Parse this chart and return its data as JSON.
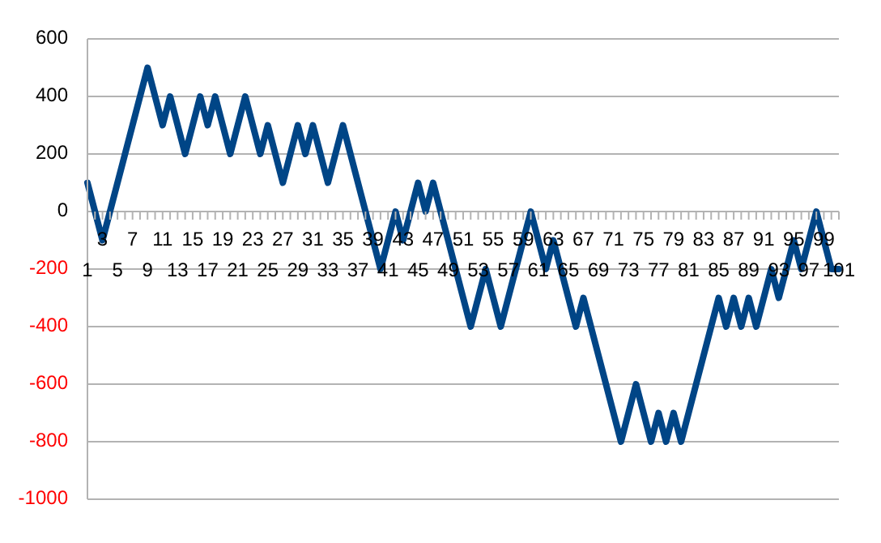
{
  "chart_data": {
    "type": "line",
    "categories": [
      "1",
      null,
      "3",
      null,
      "5",
      null,
      "7",
      null,
      "9",
      null,
      "11",
      null,
      "13",
      null,
      "15",
      null,
      "17",
      null,
      "19",
      null,
      "21",
      null,
      "23",
      null,
      "25",
      null,
      "27",
      null,
      "29",
      null,
      "31",
      null,
      "33",
      null,
      "35",
      null,
      "37",
      null,
      "39",
      null,
      "41",
      null,
      "43",
      null,
      "45",
      null,
      "47",
      null,
      "49",
      null,
      "51",
      null,
      "53",
      null,
      "55",
      null,
      "57",
      null,
      "59",
      null,
      "61",
      null,
      "63",
      null,
      "65",
      null,
      "67",
      null,
      "69",
      null,
      "71",
      null,
      "73",
      null,
      "75",
      null,
      "77",
      null,
      "79",
      null,
      "81",
      null,
      "83",
      null,
      "85",
      null,
      "87",
      null,
      "89",
      null,
      "91",
      null,
      "93",
      null,
      "95",
      null,
      "97",
      null,
      "99",
      null,
      "101"
    ],
    "series": [
      {
        "color": "#004586",
        "values": [
          100,
          0,
          -100,
          0,
          100,
          200,
          300,
          400,
          500,
          400,
          300,
          400,
          300,
          200,
          300,
          400,
          300,
          400,
          300,
          200,
          300,
          400,
          300,
          200,
          300,
          200,
          100,
          200,
          300,
          200,
          300,
          200,
          100,
          200,
          300,
          200,
          100,
          0,
          -100,
          -200,
          -100,
          0,
          -100,
          0,
          100,
          0,
          100,
          0,
          -100,
          -200,
          -300,
          -400,
          -300,
          -200,
          -300,
          -400,
          -300,
          -200,
          -100,
          0,
          -100,
          -200,
          -100,
          -200,
          -300,
          -400,
          -300,
          -400,
          -500,
          -600,
          -700,
          -800,
          -700,
          -600,
          -700,
          -800,
          -700,
          -800,
          -700,
          -800,
          -700,
          -600,
          -500,
          -400,
          -300,
          -400,
          -300,
          -400,
          -300,
          -400,
          -300,
          -200,
          -300,
          -200,
          -100,
          -200,
          -100,
          0,
          -100,
          -200,
          -200
        ]
      }
    ],
    "ylim": [
      -1000,
      600
    ],
    "yticks": [
      -1000,
      -800,
      -600,
      -400,
      -200,
      0,
      200,
      400,
      600
    ],
    "grid": "y",
    "legend": false,
    "line_style": "solid"
  }
}
